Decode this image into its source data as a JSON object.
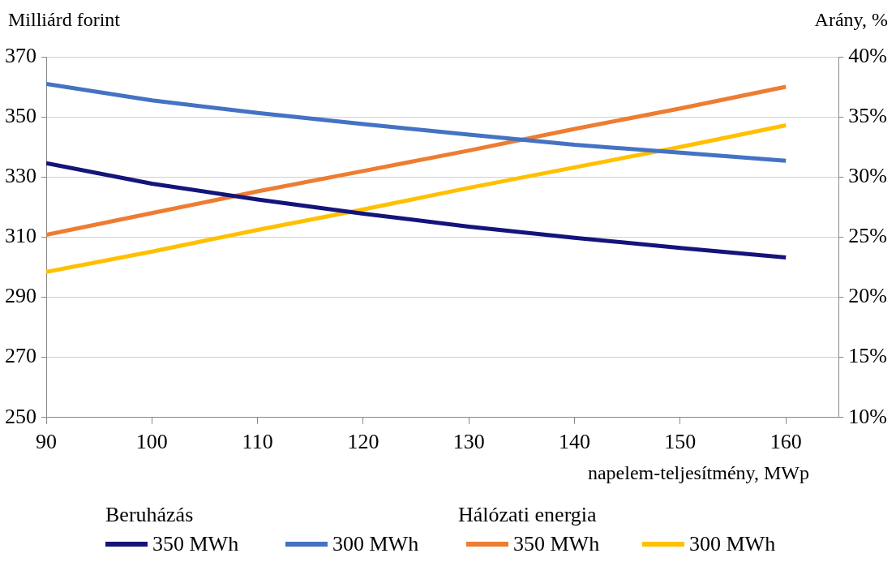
{
  "chart_data": {
    "type": "line",
    "xlabel": "napelem-teljesítmény, MWp",
    "ylabel": "Milliárd forint",
    "y2label": "Arány, %",
    "x": [
      90,
      100,
      110,
      120,
      130,
      140,
      150,
      160
    ],
    "xlim": [
      90,
      165
    ],
    "xticks": [
      90,
      100,
      110,
      120,
      130,
      140,
      150,
      160
    ],
    "ylim": [
      250,
      370
    ],
    "yticks": [
      250,
      270,
      290,
      310,
      330,
      350,
      370
    ],
    "y2lim": [
      10,
      40
    ],
    "y2ticks": [
      {
        "value": 10,
        "label": "10%"
      },
      {
        "value": 15,
        "label": "15%"
      },
      {
        "value": 20,
        "label": "20%"
      },
      {
        "value": 25,
        "label": "25%"
      },
      {
        "value": 30,
        "label": "30%"
      },
      {
        "value": 35,
        "label": "35%"
      },
      {
        "value": 40,
        "label": "40%"
      }
    ],
    "grid": "y",
    "legend": "bottom",
    "marker": "none",
    "line_style": "solid",
    "annotations": [
      "Beruházás",
      "Hálózati energia"
    ],
    "series": [
      {
        "name": "350 MWh",
        "color": "#14147a",
        "values": [
          334.6,
          327.8,
          322.5,
          317.8,
          313.5,
          309.8,
          306.4,
          303.2
        ]
      },
      {
        "name": "300 MWh",
        "color": "#4472c4",
        "values": [
          361,
          355.5,
          351.3,
          347.6,
          344.1,
          340.7,
          338.1,
          335.4
        ]
      },
      {
        "name": "350 MWh",
        "color": "#ed7d31",
        "axis": "y2",
        "values": [
          25.2,
          27.0,
          28.8,
          30.5,
          32.2,
          34.0,
          35.7,
          37.5
        ]
      },
      {
        "name": "300 MWh",
        "color": "#ffc000",
        "axis": "y2",
        "values": [
          22.1,
          23.8,
          25.6,
          27.3,
          29.1,
          30.8,
          32.5,
          34.3
        ]
      }
    ]
  }
}
